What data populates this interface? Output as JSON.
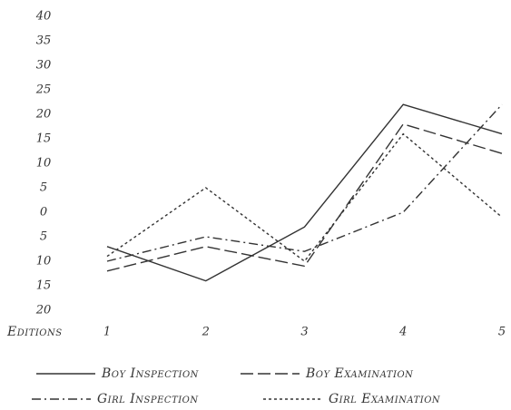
{
  "chart_data": {
    "type": "line",
    "x_label": "Editions",
    "categories": [
      "1",
      "2",
      "3",
      "4",
      "5"
    ],
    "ylim": [
      -20,
      40
    ],
    "yticks": [
      40,
      35,
      30,
      25,
      20,
      15,
      10,
      5,
      0,
      {
        "value": -5,
        "label": "5"
      },
      {
        "value": -10,
        "label": "10"
      },
      {
        "value": -15,
        "label": "15"
      },
      {
        "value": -20,
        "label": "20"
      }
    ],
    "grid": false,
    "series": [
      {
        "name": "Boy Inspection",
        "color": "#333333",
        "dash": "solid",
        "values": [
          -7,
          -14,
          -3,
          22,
          16
        ]
      },
      {
        "name": "Boy Examination",
        "color": "#333333",
        "dash": "dash",
        "values": [
          -12,
          -7,
          -11,
          18,
          12
        ]
      },
      {
        "name": "Girl Inspection",
        "color": "#333333",
        "dash": "dashdot",
        "values": [
          -10,
          -5,
          -8,
          0,
          22
        ]
      },
      {
        "name": "Girl Examination",
        "color": "#333333",
        "dash": "dot",
        "values": [
          -9,
          5,
          -10,
          16,
          -1
        ]
      }
    ]
  }
}
